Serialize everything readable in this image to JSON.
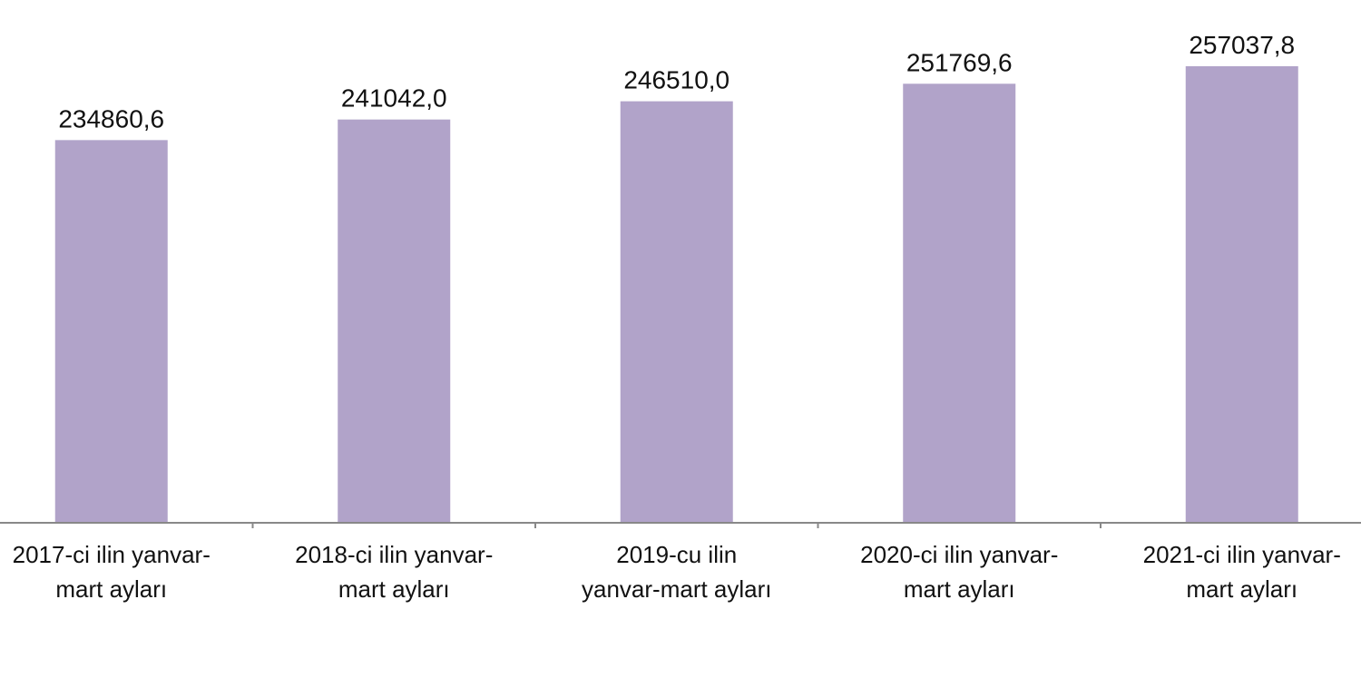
{
  "chart_data": {
    "type": "bar",
    "categories": [
      "2017-ci ilin yanvar-mart ayları",
      "2018-ci ilin yanvar-mart ayları",
      "2019-cu ilin yanvar-mart ayları",
      "2020-ci ilin yanvar-mart ayları",
      "2021-ci ilin yanvar-mart ayları"
    ],
    "values": [
      234860.6,
      241042.0,
      246510.0,
      251769.6,
      257037.8
    ],
    "value_labels": [
      "234860,6",
      "241042,0",
      "246510,0",
      "251769,6",
      "257037,8"
    ],
    "color": "#b1a3c9",
    "ylim": [
      120000,
      275000
    ]
  }
}
